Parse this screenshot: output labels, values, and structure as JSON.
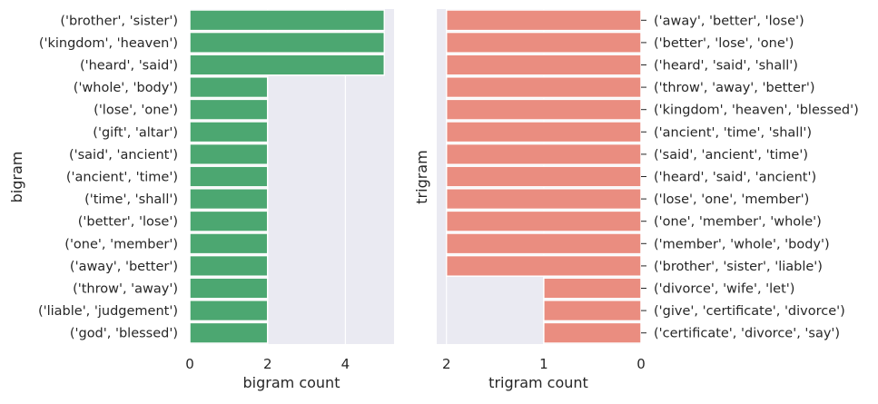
{
  "chart_data": [
    {
      "type": "bar",
      "orientation": "horizontal",
      "xlabel": "bigram count",
      "ylabel": "bigram",
      "xlim": [
        0,
        5.25
      ],
      "xticks": [
        "0",
        "2",
        "4"
      ],
      "grid": true,
      "bar_color": "#4ca771",
      "background": "#eaeaf2",
      "categories": [
        "('brother', 'sister')",
        "('kingdom', 'heaven')",
        "('heard', 'said')",
        "('whole', 'body')",
        "('lose', 'one')",
        "('gift', 'altar')",
        "('said', 'ancient')",
        "('ancient', 'time')",
        "('time', 'shall')",
        "('better', 'lose')",
        "('one', 'member')",
        "('away', 'better')",
        "('throw', 'away')",
        "('liable', 'judgement')",
        "('god', 'blessed')"
      ],
      "values": [
        5,
        5,
        5,
        2,
        2,
        2,
        2,
        2,
        2,
        2,
        2,
        2,
        2,
        2,
        2
      ]
    },
    {
      "type": "bar",
      "orientation": "horizontal",
      "xaxis_inverted": true,
      "yaxis_side": "right",
      "xlabel": "trigram count",
      "ylabel": "trigram",
      "xlim": [
        2.1,
        0
      ],
      "xticks": [
        "2",
        "1",
        "0"
      ],
      "grid": true,
      "bar_color": "#ea8d80",
      "background": "#eaeaf2",
      "categories": [
        "('away', 'better', 'lose')",
        "('better', 'lose', 'one')",
        "('heard', 'said', 'shall')",
        "('throw', 'away', 'better')",
        "('kingdom', 'heaven', 'blessed')",
        "('ancient', 'time', 'shall')",
        "('said', 'ancient', 'time')",
        "('heard', 'said', 'ancient')",
        "('lose', 'one', 'member')",
        "('one', 'member', 'whole')",
        "('member', 'whole', 'body')",
        "('brother', 'sister', 'liable')",
        "('divorce', 'wife', 'let')",
        "('give', 'certificate', 'divorce')",
        "('certificate', 'divorce', 'say')"
      ],
      "values": [
        2,
        2,
        2,
        2,
        2,
        2,
        2,
        2,
        2,
        2,
        2,
        2,
        1,
        1,
        1
      ]
    }
  ]
}
